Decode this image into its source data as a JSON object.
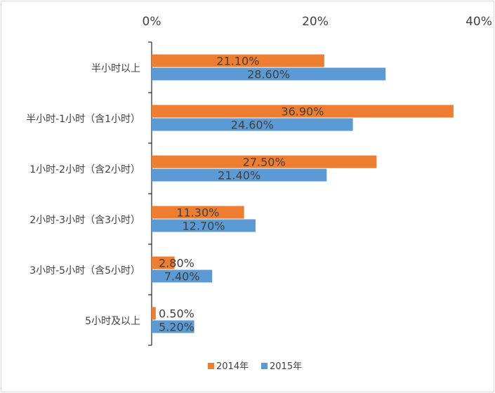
{
  "chart_data": {
    "type": "bar",
    "orientation": "horizontal",
    "title": "",
    "xlabel": "",
    "ylabel": "",
    "xlim": [
      0,
      0.4
    ],
    "xticks": [
      {
        "value": 0,
        "label": "0%"
      },
      {
        "value": 0.2,
        "label": "20%"
      },
      {
        "value": 0.4,
        "label": "40%"
      }
    ],
    "x_axis_position": "top",
    "grid": false,
    "legend_position": "bottom-center",
    "categories": [
      "半小时以上",
      "半小时-1小时（含1小时）",
      "1小时-2小时（含2小时）",
      "2小时-3小时（含3小时）",
      "3小时-5小时（含5小时）",
      "5小时及以上"
    ],
    "series": [
      {
        "name": "2014年",
        "color": "#ED7D31",
        "values": [
          0.211,
          0.369,
          0.275,
          0.113,
          0.028,
          0.005
        ],
        "labels": [
          "21.10%",
          "36.90%",
          "27.50%",
          "11.30%",
          "2.80%",
          "0.50%"
        ]
      },
      {
        "name": "2015年",
        "color": "#5B9BD5",
        "values": [
          0.286,
          0.246,
          0.214,
          0.127,
          0.074,
          0.052
        ],
        "labels": [
          "28.60%",
          "24.60%",
          "21.40%",
          "12.70%",
          "7.40%",
          "5.20%"
        ]
      }
    ],
    "axis_color": "#000000",
    "text_color": "#404040",
    "border_color": "#D9D9D9"
  }
}
